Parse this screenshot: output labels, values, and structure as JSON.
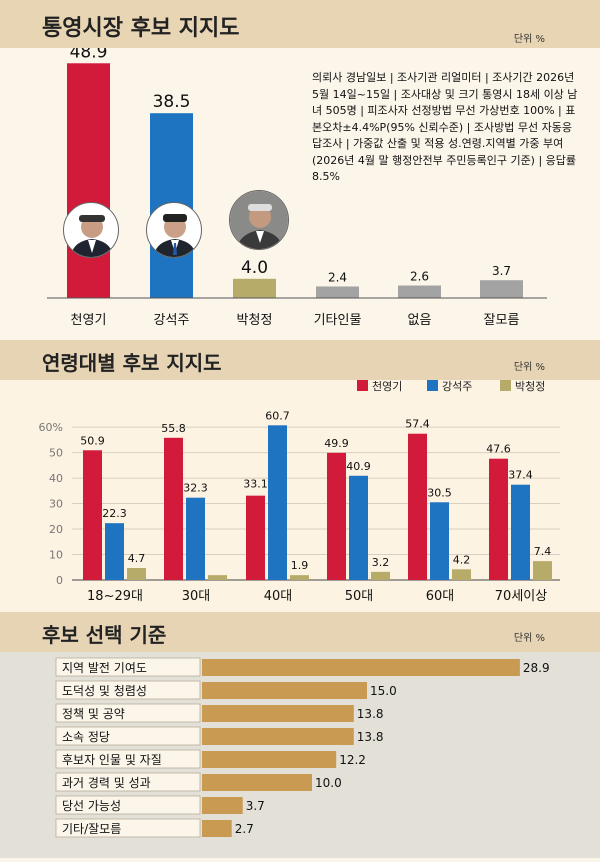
{
  "section1": {
    "title": "통영시장 후보 지지도",
    "unit": "단위 %"
  },
  "section2": {
    "title": "연령대별 후보 지지도",
    "unit": "단위 %"
  },
  "section3": {
    "title": "후보 선택 기준",
    "unit": "단위 %"
  },
  "info": "의뢰사 경남일보 | 조사기관 리얼미터 | 조사기간 2026년 5월 14일~15일 | 조사대상 및 크기 통영시 18세 이상 남녀 505명 | 피조사자 선정방법 무선 가상번호 100% | 표본오차±4.4%P(95% 신뢰수준) | 조사방법 무선 자동응답조사 | 가중값 산출 및 적용 성.연령.지역별 가중 부여(2026년 4월 말 행정안전부 주민등록인구 기준) | 응답률 8.5%",
  "colors": {
    "red": "#d21a3b",
    "blue": "#1e74c0",
    "olive": "#b7ab6a",
    "gray": "#a3a3a3",
    "tan": "#c99a52"
  },
  "chart_data": [
    {
      "type": "bar",
      "title": "통영시장 후보 지지도",
      "categories": [
        "천영기",
        "강석주",
        "박청정",
        "기타인물",
        "없음",
        "잘모름"
      ],
      "values": [
        48.9,
        38.5,
        4.0,
        2.4,
        2.6,
        3.7
      ],
      "colors": [
        "#d21a3b",
        "#1e74c0",
        "#b7ab6a",
        "#a3a3a3",
        "#a3a3a3",
        "#a3a3a3"
      ],
      "ylim": [
        0,
        50
      ]
    },
    {
      "type": "bar",
      "title": "연령대별 후보 지지도",
      "categories": [
        "18~29대",
        "30대",
        "40대",
        "50대",
        "60대",
        "70세이상"
      ],
      "series": [
        {
          "name": "천영기",
          "color": "#d21a3b",
          "values": [
            50.9,
            55.8,
            33.1,
            49.9,
            57.4,
            47.6
          ]
        },
        {
          "name": "강석주",
          "color": "#1e74c0",
          "values": [
            22.3,
            32.3,
            60.7,
            40.9,
            30.5,
            37.4
          ]
        },
        {
          "name": "박청정",
          "color": "#b7ab6a",
          "values": [
            4.7,
            1.9,
            1.9,
            3.2,
            4.2,
            7.4
          ]
        }
      ],
      "data_labels": [
        [
          "50.9",
          "55.8",
          "33.1",
          "49.9",
          "57.4",
          "47.6"
        ],
        [
          "22.3",
          "32.3",
          "60.7",
          "40.9",
          "30.5",
          "37.4"
        ],
        [
          "4.7",
          "",
          "1.9",
          "3.2",
          "4.2",
          "7.4"
        ]
      ],
      "yticks": [
        "0",
        "10",
        "20",
        "30",
        "40",
        "50",
        "60%"
      ],
      "ylim": [
        0,
        62
      ],
      "grid": true,
      "legend": "top-right"
    },
    {
      "type": "bar",
      "orientation": "horizontal",
      "title": "후보 선택 기준",
      "categories": [
        "지역 발전 기여도",
        "도덕성 및 청렴성",
        "정책 및 공약",
        "소속 정당",
        "후보자 인물 및 자질",
        "과거 경력 및 성과",
        "당선 가능성",
        "기타/잘모름"
      ],
      "values": [
        28.9,
        15.0,
        13.8,
        13.8,
        12.2,
        10.0,
        3.7,
        2.7
      ],
      "labels": [
        "28.9",
        "15.0",
        "13.8",
        "13.8",
        "12.2",
        "10.0",
        "3.7",
        "2.7"
      ],
      "color": "#c99a52"
    }
  ]
}
